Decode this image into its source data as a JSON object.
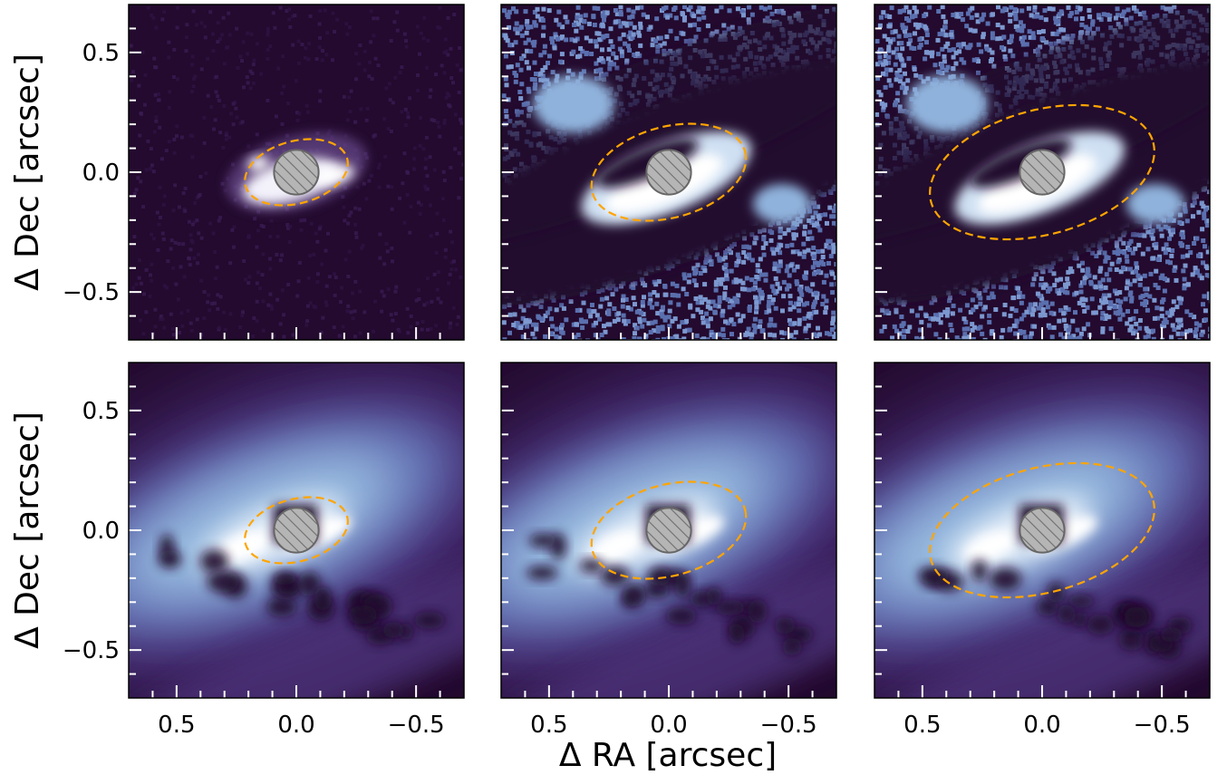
{
  "figure": {
    "xlabel": "Δ RA [arcsec]",
    "ylabel": "Δ Dec [arcsec]"
  },
  "chart_data": {
    "type": "heatmap",
    "rows": 2,
    "cols": 3,
    "xlim": [
      0.7,
      -0.7
    ],
    "ylim": [
      -0.7,
      0.7
    ],
    "xticks": [
      {
        "value": 0.5,
        "label": "0.5"
      },
      {
        "value": 0.0,
        "label": "0.0"
      },
      {
        "value": -0.5,
        "label": "−0.5"
      }
    ],
    "yticks": [
      {
        "value": 0.5,
        "label": "0.5"
      },
      {
        "value": 0.0,
        "label": "0.0"
      },
      {
        "value": -0.5,
        "label": "−0.5"
      }
    ],
    "colors": {
      "background_dark": "#230a2e",
      "ellipse": "#ffa500",
      "mask_fill": "#b5b5b5",
      "mask_edge": "#666666"
    },
    "mask": {
      "center": [
        0.0,
        0.0
      ],
      "radius": 0.093
    },
    "panels": [
      {
        "row": 0,
        "col": 0,
        "style": "top-faint",
        "ellipse": {
          "rx": 0.22,
          "ry": 0.13,
          "angle": -15
        }
      },
      {
        "row": 0,
        "col": 1,
        "style": "top-threshold",
        "ellipse": {
          "rx": 0.33,
          "ry": 0.19,
          "angle": -15
        }
      },
      {
        "row": 0,
        "col": 2,
        "style": "top-threshold",
        "ellipse": {
          "rx": 0.48,
          "ry": 0.26,
          "angle": -15
        }
      },
      {
        "row": 1,
        "col": 0,
        "style": "bottom-smooth",
        "ellipse": {
          "rx": 0.22,
          "ry": 0.13,
          "angle": -15
        }
      },
      {
        "row": 1,
        "col": 1,
        "style": "bottom-smooth",
        "ellipse": {
          "rx": 0.33,
          "ry": 0.19,
          "angle": -15
        }
      },
      {
        "row": 1,
        "col": 2,
        "style": "bottom-smooth",
        "ellipse": {
          "rx": 0.48,
          "ry": 0.26,
          "angle": -15
        }
      }
    ]
  }
}
